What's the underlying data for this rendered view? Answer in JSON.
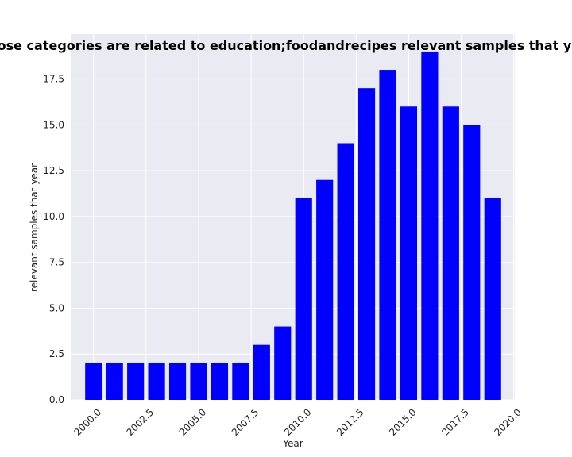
{
  "chart_data": {
    "type": "bar",
    "title": "Number of apps whose categories are related to education;foodandrecipes relevant samples that year in privacy policies",
    "xlabel": "Year",
    "ylabel": "relevant samples that year",
    "x": [
      2000,
      2001,
      2002,
      2003,
      2004,
      2005,
      2006,
      2007,
      2008,
      2009,
      2010,
      2011,
      2012,
      2013,
      2014,
      2015,
      2016,
      2017,
      2018,
      2019
    ],
    "values": [
      2,
      2,
      2,
      2,
      2,
      2,
      2,
      2,
      3,
      4,
      11,
      12,
      14,
      17,
      18,
      16,
      19,
      16,
      15,
      11
    ],
    "xlim": [
      1998.95,
      2020.05
    ],
    "ylim": [
      0,
      19.95
    ],
    "xticks": [
      "2000.0",
      "2002.5",
      "2005.0",
      "2007.5",
      "2010.0",
      "2012.5",
      "2015.0",
      "2017.5",
      "2020.0"
    ],
    "xtick_values": [
      2000,
      2002.5,
      2005,
      2007.5,
      2010,
      2012.5,
      2015,
      2017.5,
      2020
    ],
    "yticks": [
      "0.0",
      "2.5",
      "5.0",
      "7.5",
      "10.0",
      "12.5",
      "15.0",
      "17.5"
    ],
    "ytick_values": [
      0,
      2.5,
      5,
      7.5,
      10,
      12.5,
      15,
      17.5
    ],
    "grid": true,
    "colors": {
      "bar": "#0000ff",
      "plot_background": "#eaeaf2",
      "grid": "#ffffff"
    }
  }
}
